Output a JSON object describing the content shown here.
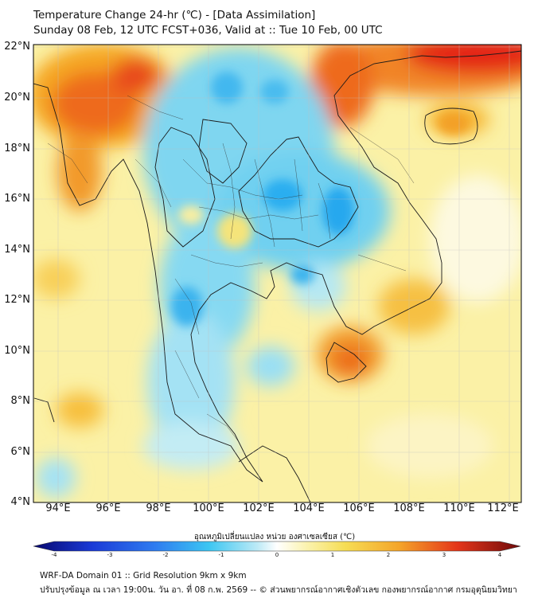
{
  "header": {
    "title_line1": "Temperature Change 24-hr (℃) - [Data Assimilation]",
    "title_line2": "Sunday 08 Feb, 12 UTC FCST+036, Valid at :: Tue 10 Feb, 00 UTC"
  },
  "map": {
    "lat_labels": [
      "22°N",
      "20°N",
      "18°N",
      "16°N",
      "14°N",
      "12°N",
      "10°N",
      "8°N",
      "6°N",
      "4°N"
    ],
    "lon_labels": [
      "94°E",
      "96°E",
      "98°E",
      "100°E",
      "102°E",
      "104°E",
      "106°E",
      "108°E",
      "110°E",
      "112°E"
    ]
  },
  "colorbar": {
    "caption": "อุณหภูมิเปลี่ยนแปลง หน่วย องศาเซลเซียส (℃)",
    "ticks": [
      "-4",
      "-3",
      "-2",
      "-1",
      "0",
      "1",
      "2",
      "3",
      "4"
    ],
    "min": -4,
    "max": 4
  },
  "footer": {
    "line1": "WRF-DA Domain 01 :: Grid Resolution 9km x 9km",
    "line2": "ปรับปรุงข้อมูล ณ เวลา 19:00น. วัน อา. ที่ 08 ก.พ. 2569 -- © ส่วนพยากรณ์อากาศเชิงตัวเลข กองพยากรณ์อากาศ กรมอุตุนิยมวิทยา"
  }
}
